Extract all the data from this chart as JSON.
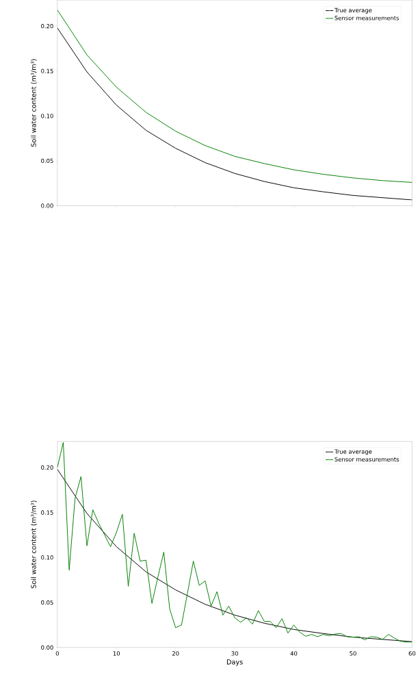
{
  "chart_data": [
    {
      "type": "line",
      "ylabel": "Soil water content (m³/m³)",
      "x": [
        0,
        5,
        10,
        15,
        20,
        25,
        30,
        35,
        40,
        45,
        50,
        55,
        60
      ],
      "series": [
        {
          "name": "True average",
          "color": "#000000",
          "values": [
            0.198,
            0.149,
            0.112,
            0.084,
            0.064,
            0.048,
            0.036,
            0.027,
            0.02,
            0.0155,
            0.0115,
            0.009,
            0.0065
          ]
        },
        {
          "name": "Sensor measurements",
          "color": "#008000",
          "values": [
            0.218,
            0.168,
            0.132,
            0.104,
            0.083,
            0.067,
            0.055,
            0.047,
            0.04,
            0.035,
            0.031,
            0.028,
            0.026
          ]
        }
      ],
      "xlim": [
        0,
        60
      ],
      "ylim": [
        0,
        0.229
      ],
      "xticks": [
        0,
        10,
        20,
        30,
        40,
        50,
        60
      ],
      "yticks": [
        {
          "value": 0,
          "label": "0.00"
        },
        {
          "value": 0.05,
          "label": "0.05"
        },
        {
          "value": 0.1,
          "label": "0.10"
        },
        {
          "value": 0.15,
          "label": "0.15"
        },
        {
          "value": 0.2,
          "label": "0.20"
        }
      ],
      "tick_labels": "y",
      "legend": "top right",
      "grid": false,
      "marker": "none",
      "line_style": "solid"
    },
    {
      "type": "line",
      "xlabel": "Days",
      "ylabel": "Soil water content (m³/m³)",
      "series": [
        {
          "name": "True average",
          "color": "#000000",
          "x": [
            0,
            5,
            10,
            15,
            20,
            25,
            30,
            35,
            40,
            45,
            50,
            55,
            60
          ],
          "values": [
            0.198,
            0.149,
            0.112,
            0.084,
            0.064,
            0.048,
            0.036,
            0.027,
            0.02,
            0.0155,
            0.0115,
            0.009,
            0.0065
          ]
        },
        {
          "name": "Sensor measurements",
          "color": "#008000",
          "x": [
            0,
            1,
            2,
            3,
            4,
            5,
            6,
            7,
            8,
            9,
            10,
            11,
            12,
            13,
            14,
            15,
            16,
            17,
            18,
            19,
            20,
            21,
            22,
            23,
            24,
            25,
            26,
            27,
            28,
            29,
            30,
            31,
            32,
            33,
            34,
            35,
            36,
            37,
            38,
            39,
            40,
            41,
            42,
            43,
            44,
            45,
            46,
            47,
            48,
            49,
            50,
            51,
            52,
            53,
            54,
            55,
            56,
            57,
            58,
            59,
            60
          ],
          "values": [
            0.2,
            0.228,
            0.086,
            0.166,
            0.19,
            0.113,
            0.153,
            0.138,
            0.125,
            0.112,
            0.128,
            0.148,
            0.068,
            0.127,
            0.096,
            0.097,
            0.049,
            0.078,
            0.106,
            0.043,
            0.022,
            0.025,
            0.06,
            0.096,
            0.069,
            0.074,
            0.046,
            0.062,
            0.036,
            0.046,
            0.033,
            0.028,
            0.033,
            0.026,
            0.041,
            0.029,
            0.029,
            0.022,
            0.032,
            0.016,
            0.025,
            0.017,
            0.0125,
            0.0145,
            0.012,
            0.0145,
            0.013,
            0.015,
            0.0155,
            0.012,
            0.0115,
            0.012,
            0.0085,
            0.012,
            0.0115,
            0.009,
            0.0145,
            0.0105,
            0.007,
            0.006,
            0.006
          ]
        }
      ],
      "xlim": [
        0,
        60
      ],
      "ylim": [
        0,
        0.229
      ],
      "xticks": [
        0,
        10,
        20,
        30,
        40,
        50,
        60
      ],
      "yticks": [
        {
          "value": 0,
          "label": "0.00"
        },
        {
          "value": 0.05,
          "label": "0.05"
        },
        {
          "value": 0.1,
          "label": "0.10"
        },
        {
          "value": 0.15,
          "label": "0.15"
        },
        {
          "value": 0.2,
          "label": "0.20"
        }
      ],
      "legend": "top right",
      "grid": false,
      "marker": "none",
      "line_style": "solid"
    }
  ]
}
